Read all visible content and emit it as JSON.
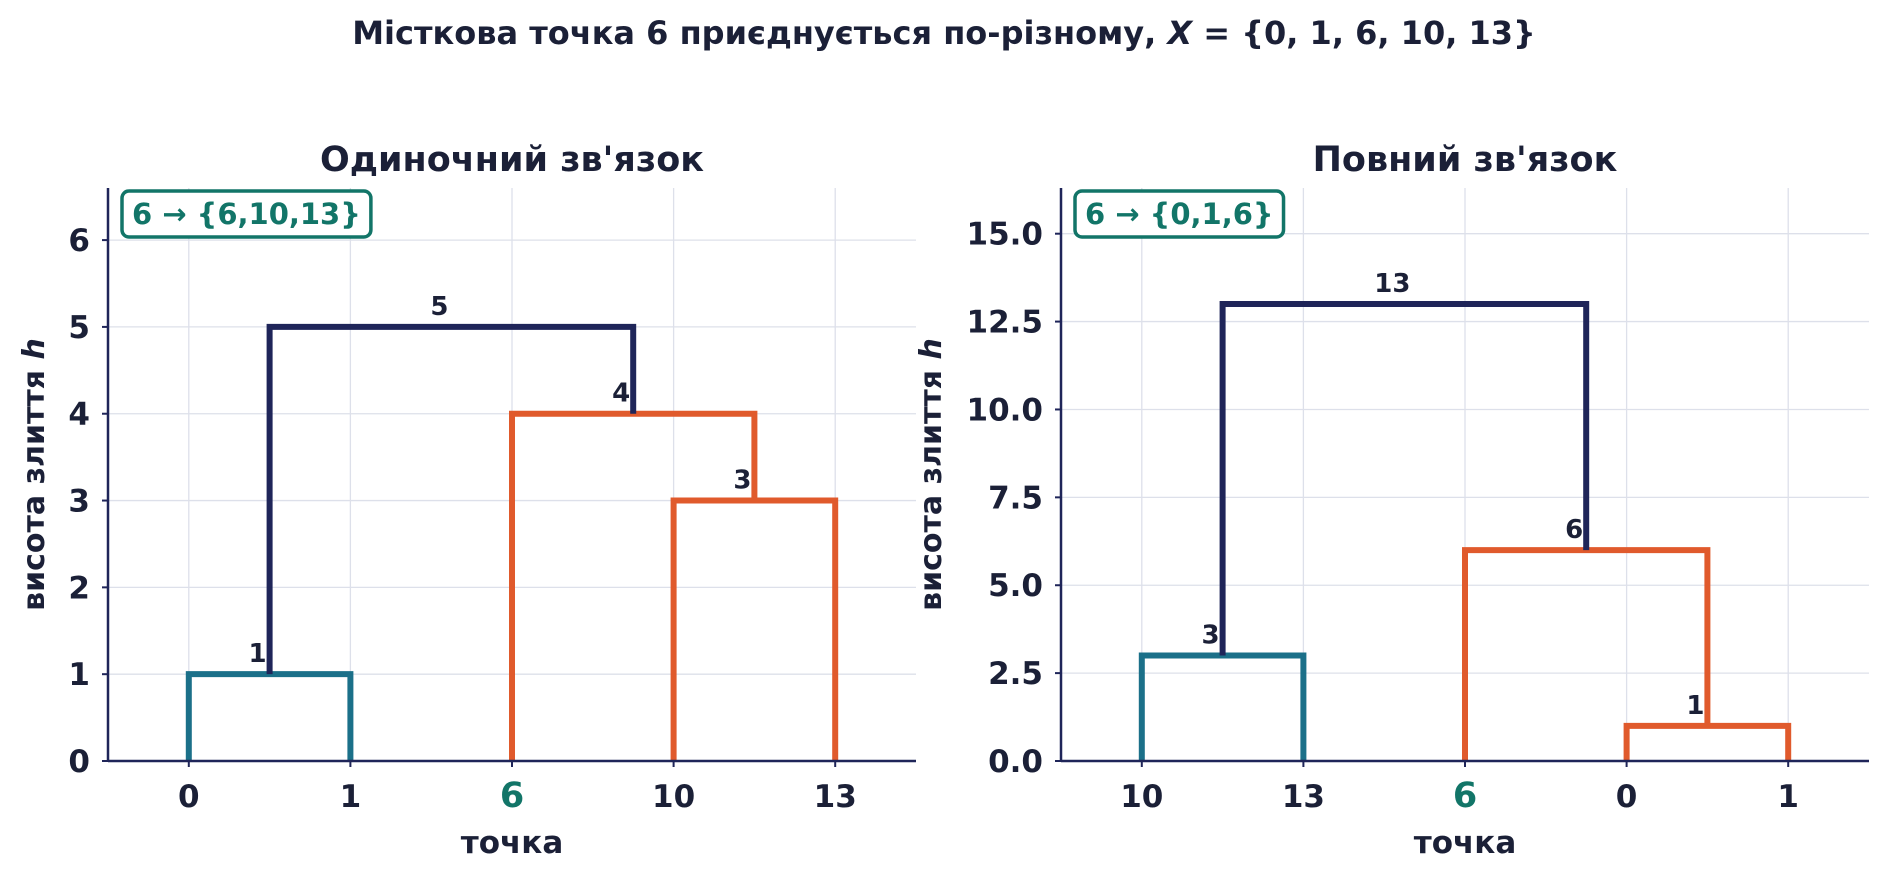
{
  "figure": {
    "suptitle_text": "Місткова точка 6 приєднується по-різному, ",
    "suptitle_var": "X",
    "suptitle_set": " = {0, 1, 6, 10, 13}"
  },
  "colors": {
    "navy": "#1f2559",
    "teal": "#1b7089",
    "orange": "#e05a2c",
    "green": "#127568",
    "grid": "#dde0ea",
    "text": "#1b2037"
  },
  "chart_data": [
    {
      "type": "dendrogram",
      "title": "Одиночний зв'язок",
      "xlabel": "точка",
      "ylabel_text": "висота злиття ",
      "ylabel_var": "h",
      "ylim": [
        0,
        6.6
      ],
      "yticks": [
        0,
        1,
        2,
        3,
        4,
        5,
        6
      ],
      "ytick_labels": [
        "0",
        "1",
        "2",
        "3",
        "4",
        "5",
        "6"
      ],
      "leaves": [
        "0",
        "1",
        "6",
        "10",
        "13"
      ],
      "highlight_leaf": "6",
      "annotation": "6 → {6,10,13}",
      "grid": true,
      "merges": [
        {
          "left": [
            0,
            0
          ],
          "right": [
            1,
            0
          ],
          "height": 1,
          "label": "1",
          "color": "teal"
        },
        {
          "left": [
            3,
            0
          ],
          "right": [
            4,
            0
          ],
          "height": 3,
          "label": "3",
          "color": "orange"
        },
        {
          "left": [
            2,
            0
          ],
          "right": [
            3.5,
            3
          ],
          "height": 4,
          "label": "4",
          "color": "orange"
        },
        {
          "left": [
            0.5,
            1
          ],
          "right": [
            2.75,
            4
          ],
          "height": 5,
          "label": "5",
          "color": "navy"
        }
      ]
    },
    {
      "type": "dendrogram",
      "title": "Повний зв'язок",
      "xlabel": "точка",
      "ylabel_text": "висота злиття ",
      "ylabel_var": "h",
      "ylim": [
        0,
        16.3
      ],
      "yticks": [
        0,
        2.5,
        5,
        7.5,
        10,
        12.5,
        15
      ],
      "ytick_labels": [
        "0.0",
        "2.5",
        "5.0",
        "7.5",
        "10.0",
        "12.5",
        "15.0"
      ],
      "leaves": [
        "10",
        "13",
        "6",
        "0",
        "1"
      ],
      "highlight_leaf": "6",
      "annotation": "6 → {0,1,6}",
      "grid": true,
      "merges": [
        {
          "left": [
            0,
            0
          ],
          "right": [
            1,
            0
          ],
          "height": 3,
          "label": "3",
          "color": "teal"
        },
        {
          "left": [
            3,
            0
          ],
          "right": [
            4,
            0
          ],
          "height": 1,
          "label": "1",
          "color": "orange"
        },
        {
          "left": [
            2,
            0
          ],
          "right": [
            3.5,
            1
          ],
          "height": 6,
          "label": "6",
          "color": "orange"
        },
        {
          "left": [
            0.5,
            3
          ],
          "right": [
            2.75,
            6
          ],
          "height": 13,
          "label": "13",
          "color": "navy"
        }
      ]
    }
  ]
}
